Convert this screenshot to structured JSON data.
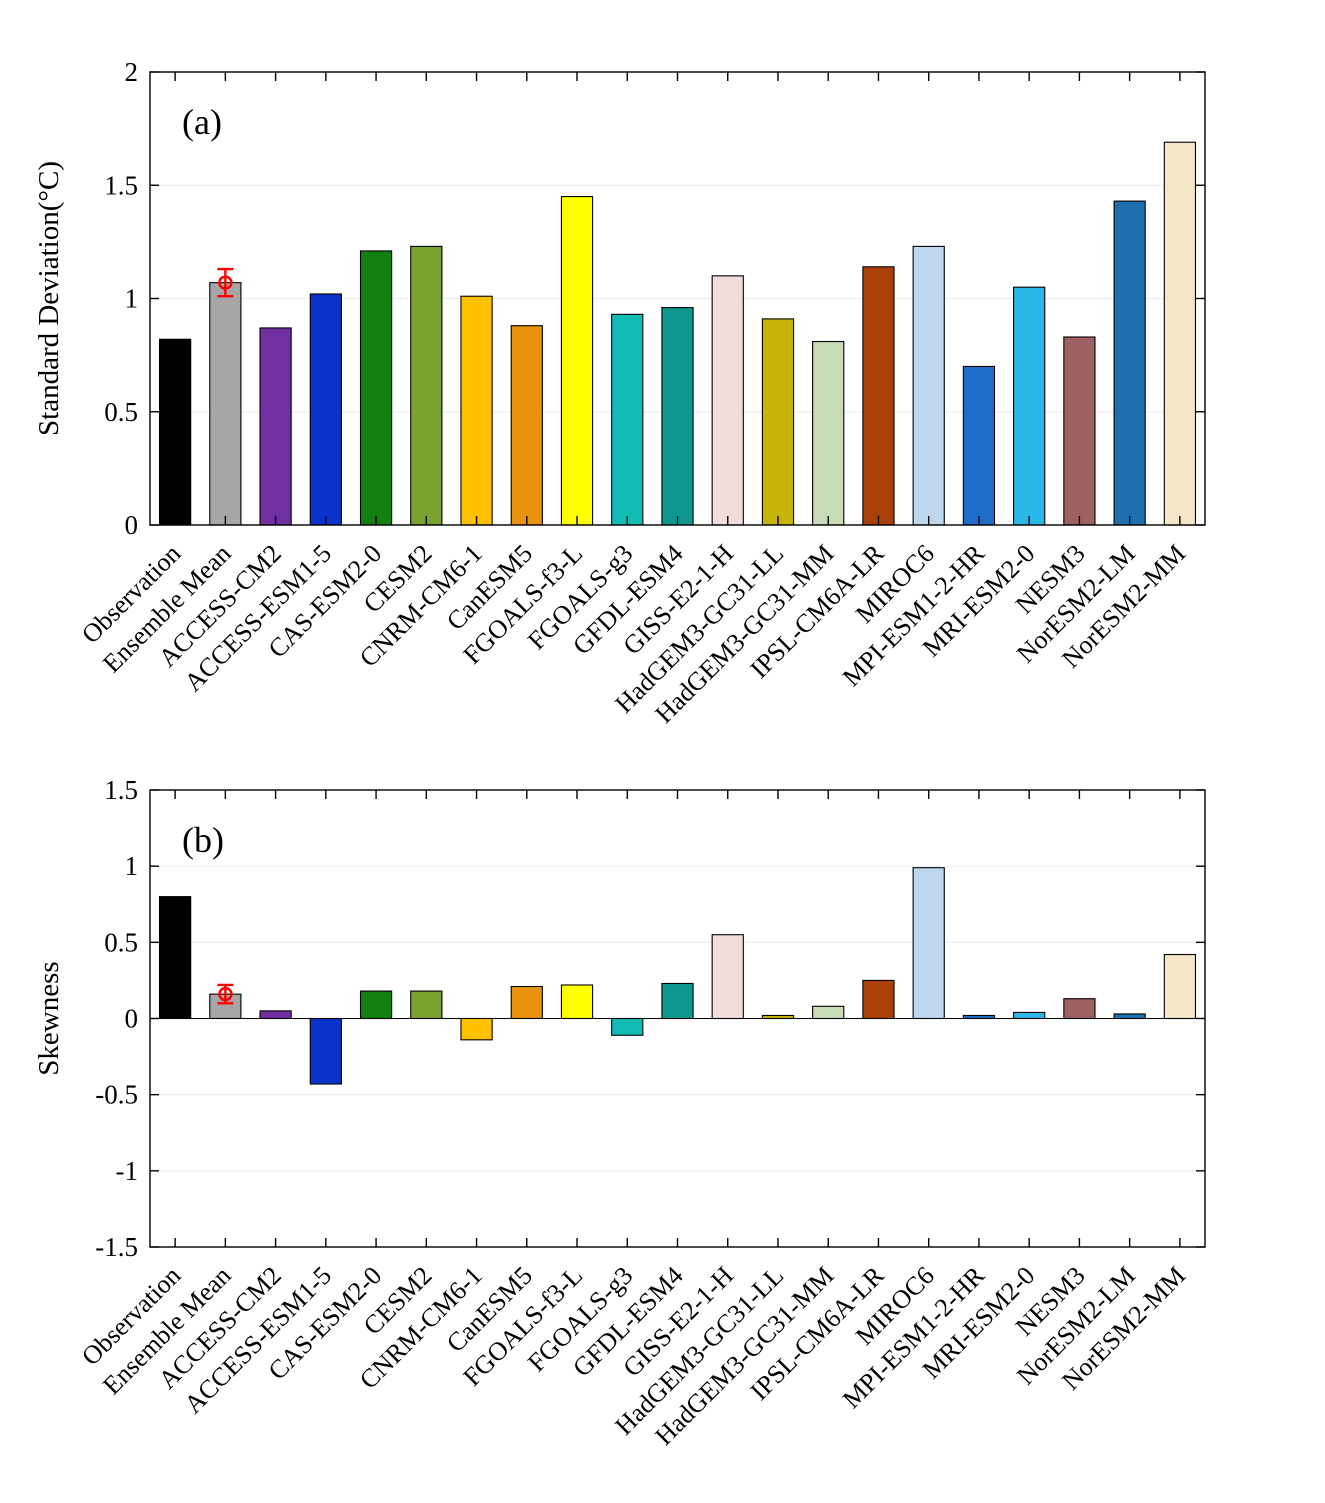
{
  "figure": {
    "background": "#ffffff",
    "axis_color": "#000000",
    "grid_color": "#ececec"
  },
  "bar_colors": [
    "#000000",
    "#a6a6a6",
    "#7030a0",
    "#0a33cc",
    "#118011",
    "#79a32e",
    "#ffc000",
    "#e8920e",
    "#ffff00",
    "#10bdb4",
    "#0d978e",
    "#f2dddc",
    "#c7b50a",
    "#c8dcb8",
    "#a84008",
    "#bdd7ee",
    "#1d6ec9",
    "#2bb8e8",
    "#9e6060",
    "#1f6fae",
    "#f5e6c8"
  ],
  "chart_data": [
    {
      "type": "bar",
      "panel_label": "(a)",
      "title": "",
      "xlabel": "",
      "ylabel": "Standard Deviation(°C)",
      "ylim": [
        0,
        2
      ],
      "yticks": [
        0,
        0.5,
        1,
        1.5,
        2
      ],
      "ytick_labels": [
        "0",
        "0.5",
        "1",
        "1.5",
        "2"
      ],
      "grid": "horizontal",
      "legend": "none",
      "categories": [
        "Observation",
        "Ensemble Mean",
        "ACCESS-CM2",
        "ACCESS-ESM1-5",
        "CAS-ESM2-0",
        "CESM2",
        "CNRM-CM6-1",
        "CanESM5",
        "FGOALS-f3-L",
        "FGOALS-g3",
        "GFDL-ESM4",
        "GISS-E2-1-H",
        "HadGEM3-GC31-LL",
        "HadGEM3-GC31-MM",
        "IPSL-CM6A-LR",
        "MIROC6",
        "MPI-ESM1-2-HR",
        "MRI-ESM2-0",
        "NESM3",
        "NorESM2-LM",
        "NorESM2-MM"
      ],
      "values": [
        0.82,
        1.07,
        0.87,
        1.02,
        1.21,
        1.23,
        1.01,
        0.88,
        1.45,
        0.93,
        0.96,
        1.1,
        0.91,
        0.81,
        1.14,
        1.23,
        0.7,
        1.05,
        0.83,
        1.43,
        1.69
      ],
      "error_bar": {
        "category_index": 1,
        "value": 1.07,
        "minus": 0.06,
        "plus": 0.06,
        "color": "#ff0000",
        "marker": "open-circle"
      }
    },
    {
      "type": "bar",
      "panel_label": "(b)",
      "title": "",
      "xlabel": "",
      "ylabel": "Skewness",
      "ylim": [
        -1.5,
        1.5
      ],
      "yticks": [
        -1.5,
        -1,
        -0.5,
        0,
        0.5,
        1,
        1.5
      ],
      "ytick_labels": [
        "-1.5",
        "-1",
        "-0.5",
        "0",
        "0.5",
        "1",
        "1.5"
      ],
      "grid": "horizontal",
      "legend": "none",
      "categories": [
        "Observation",
        "Ensemble Mean",
        "ACCESS-CM2",
        "ACCESS-ESM1-5",
        "CAS-ESM2-0",
        "CESM2",
        "CNRM-CM6-1",
        "CanESM5",
        "FGOALS-f3-L",
        "FGOALS-g3",
        "GFDL-ESM4",
        "GISS-E2-1-H",
        "HadGEM3-GC31-LL",
        "HadGEM3-GC31-MM",
        "IPSL-CM6A-LR",
        "MIROC6",
        "MPI-ESM1-2-HR",
        "MRI-ESM2-0",
        "NESM3",
        "NorESM2-LM",
        "NorESM2-MM"
      ],
      "values": [
        0.8,
        0.16,
        0.05,
        -0.43,
        0.18,
        0.18,
        -0.14,
        0.21,
        0.22,
        -0.11,
        0.23,
        0.55,
        0.02,
        0.08,
        0.25,
        0.99,
        0.02,
        0.04,
        0.13,
        0.03,
        0.42
      ],
      "error_bar": {
        "category_index": 1,
        "value": 0.16,
        "minus": 0.06,
        "plus": 0.06,
        "color": "#ff0000",
        "marker": "open-circle"
      }
    }
  ]
}
